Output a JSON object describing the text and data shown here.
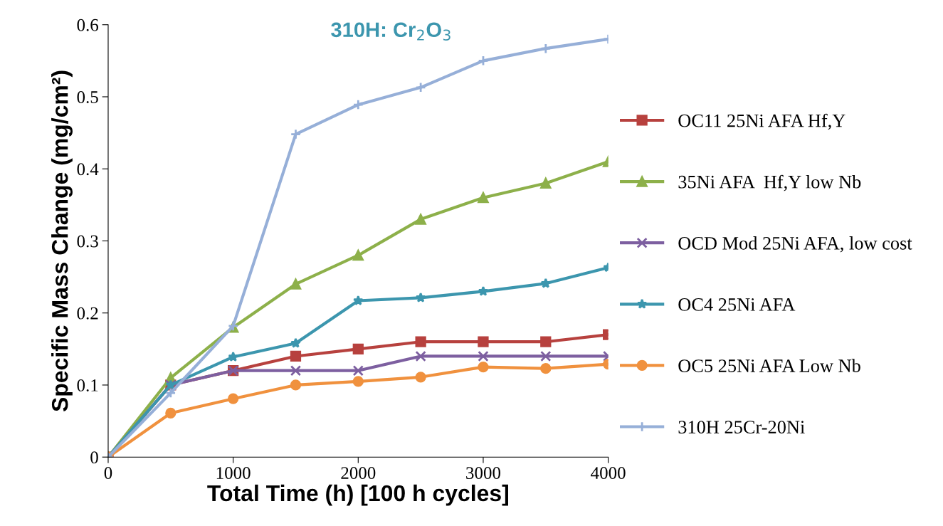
{
  "chart_data": {
    "type": "line",
    "xlabel": "Total Time (h) [100 h cycles]",
    "ylabel": "Specific Mass Change (mg/cm²)",
    "annotations": [
      "310H: Cr$_{2}$O$_{3}$"
    ],
    "x": [
      0,
      500,
      1000,
      1500,
      2000,
      2500,
      3000,
      3500,
      4000
    ],
    "xlim": [
      0,
      4000
    ],
    "xticks": [
      0,
      1000,
      2000,
      3000,
      4000
    ],
    "ylim": [
      0,
      0.6
    ],
    "yticks": [
      0,
      0.1,
      0.2,
      0.3,
      0.4,
      0.5,
      0.6
    ],
    "grid": false,
    "legend": "right",
    "line_style": "solid",
    "series": [
      {
        "name": "OC11 25Ni AFA Hf,Y",
        "color": "#b7413e",
        "marker": "square",
        "values": [
          0,
          0.1,
          0.12,
          0.14,
          0.15,
          0.16,
          0.16,
          0.16,
          0.17
        ]
      },
      {
        "name": "35Ni AFA  Hf,Y low Nb",
        "color": "#8db04a",
        "marker": "triangle",
        "values": [
          0,
          0.11,
          0.18,
          0.24,
          0.28,
          0.33,
          0.36,
          0.38,
          0.41
        ]
      },
      {
        "name": "OCD Mod 25Ni AFA, low cost",
        "color": "#7d5fa0",
        "marker": "cross",
        "values": [
          0,
          0.1,
          0.12,
          0.12,
          0.12,
          0.14,
          0.14,
          0.14,
          0.14
        ]
      },
      {
        "name": "OC4 25Ni AFA",
        "color": "#3c96ae",
        "marker": "star",
        "values": [
          0,
          0.1,
          0.139,
          0.158,
          0.217,
          0.221,
          0.23,
          0.241,
          0.263
        ]
      },
      {
        "name": "OC5 25Ni AFA Low Nb",
        "color": "#f0913e",
        "marker": "circle",
        "values": [
          0,
          0.061,
          0.081,
          0.1,
          0.105,
          0.111,
          0.125,
          0.123,
          0.129
        ]
      },
      {
        "name": "310H 25Cr-20Ni",
        "color": "#96afd8",
        "marker": "plus",
        "values": [
          0,
          0.089,
          0.182,
          0.448,
          0.489,
          0.513,
          0.55,
          0.567,
          0.58
        ]
      }
    ]
  }
}
